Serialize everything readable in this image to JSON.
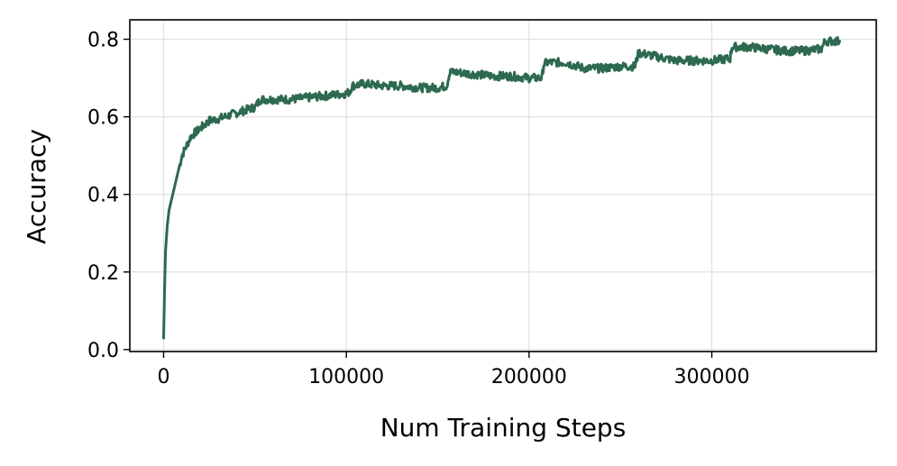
{
  "chart_data": {
    "type": "line",
    "title": "",
    "xlabel": "Num Training Steps",
    "ylabel": "Accuracy",
    "xlim": [
      -18500,
      390000
    ],
    "ylim": [
      -0.005,
      0.85
    ],
    "xticks": [
      0,
      100000,
      200000,
      300000
    ],
    "xtick_labels": [
      "0",
      "100000",
      "200000",
      "300000"
    ],
    "yticks": [
      0.0,
      0.2,
      0.4,
      0.6,
      0.8
    ],
    "ytick_labels": [
      "0.0",
      "0.2",
      "0.4",
      "0.6",
      "0.8"
    ],
    "grid": true,
    "legend": "none",
    "colors": {
      "line": "#2d6a4f",
      "grid": "#e0e0e0",
      "axis": "#000000"
    },
    "series": [
      {
        "x": [
          0,
          500,
          1000,
          2000,
          3000,
          5000,
          7500,
          10000,
          15000,
          20000,
          25000,
          30000,
          40000,
          50000,
          53000,
          60000,
          70000,
          80000,
          90000,
          100000,
          102000,
          103000,
          110000,
          120000,
          130000,
          140000,
          150000,
          155000,
          156000,
          157000,
          160000,
          170000,
          180000,
          190000,
          200000,
          207000,
          208000,
          210000,
          220000,
          230000,
          240000,
          250000,
          258000,
          259000,
          260000,
          270000,
          280000,
          290000,
          300000,
          310000,
          311000,
          315000,
          320000,
          330000,
          340000,
          350000,
          360000,
          362000,
          370000
        ],
        "y": [
          0.03,
          0.15,
          0.25,
          0.32,
          0.36,
          0.4,
          0.45,
          0.5,
          0.55,
          0.57,
          0.59,
          0.595,
          0.61,
          0.625,
          0.645,
          0.645,
          0.645,
          0.65,
          0.655,
          0.66,
          0.665,
          0.68,
          0.685,
          0.68,
          0.68,
          0.675,
          0.675,
          0.68,
          0.705,
          0.715,
          0.715,
          0.71,
          0.705,
          0.705,
          0.7,
          0.7,
          0.735,
          0.74,
          0.74,
          0.725,
          0.725,
          0.73,
          0.73,
          0.75,
          0.765,
          0.755,
          0.745,
          0.745,
          0.745,
          0.75,
          0.78,
          0.78,
          0.78,
          0.775,
          0.77,
          0.77,
          0.775,
          0.795,
          0.795
        ]
      }
    ]
  }
}
